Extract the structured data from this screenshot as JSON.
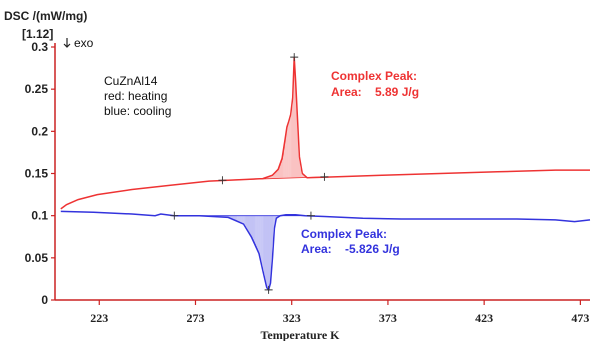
{
  "chart_data": {
    "type": "line",
    "ylabel": "DSC /(mW/mg)",
    "ylabel_extra": "[1.12]",
    "exo_label": "exo",
    "xlabel": "Temperature K",
    "xlim": [
      200,
      478
    ],
    "ylim": [
      0,
      0.3
    ],
    "xticks": [
      223,
      273,
      323,
      373,
      423,
      473
    ],
    "yticks": [
      0,
      0.05,
      0.1,
      0.15,
      0.2,
      0.25,
      0.3
    ],
    "ytick_labels": [
      "0",
      "0.05",
      "0.1",
      "0.15",
      "0.2",
      "0.25",
      "0.3"
    ],
    "legend_lines": [
      "CuZnAl14",
      "red: heating",
      "blue: cooling"
    ],
    "series": [
      {
        "color": "#ee3333",
        "x": [
          203,
          206,
          212,
          222,
          240,
          260,
          280,
          290,
          300,
          308,
          313,
          316,
          318,
          319.5,
          320.5,
          321.5,
          322.5,
          323.5,
          324.3,
          325,
          326,
          327,
          328.5,
          331,
          345,
          370,
          400,
          430,
          460,
          478
        ],
        "y": [
          0.108,
          0.113,
          0.119,
          0.125,
          0.131,
          0.136,
          0.141,
          0.142,
          0.143,
          0.144,
          0.148,
          0.155,
          0.168,
          0.19,
          0.205,
          0.212,
          0.22,
          0.24,
          0.288,
          0.26,
          0.215,
          0.17,
          0.15,
          0.145,
          0.146,
          0.148,
          0.15,
          0.152,
          0.154,
          0.154
        ]
      },
      {
        "color": "#3333dd",
        "x": [
          203,
          220,
          240,
          252,
          255,
          262,
          275,
          290,
          298,
          302,
          306,
          308,
          310,
          311,
          312,
          313,
          314,
          315,
          317,
          320,
          325,
          330,
          340,
          360,
          380,
          400,
          420,
          440,
          460,
          470,
          478
        ],
        "y": [
          0.105,
          0.104,
          0.102,
          0.1,
          0.102,
          0.1,
          0.1,
          0.098,
          0.09,
          0.075,
          0.055,
          0.035,
          0.015,
          0.012,
          0.02,
          0.05,
          0.085,
          0.097,
          0.1,
          0.101,
          0.101,
          0.1,
          0.099,
          0.097,
          0.096,
          0.096,
          0.096,
          0.096,
          0.095,
          0.093,
          0.095
        ]
      }
    ],
    "peaks": [
      {
        "title": "Complex Peak:",
        "area_label": "Area:",
        "area_value": "5.89 J/g",
        "color": "#ee3333",
        "baseline": [
          [
            287,
            0.142
          ],
          [
            340,
            0.146
          ]
        ],
        "apex": [
          324.3,
          0.288
        ]
      },
      {
        "title": "Complex Peak:",
        "area_label": "Area:",
        "area_value": "-5.826 J/g",
        "color": "#3333dd",
        "baseline": [
          [
            262,
            0.1
          ],
          [
            333,
            0.1
          ]
        ],
        "apex": [
          311,
          0.012
        ]
      }
    ]
  }
}
